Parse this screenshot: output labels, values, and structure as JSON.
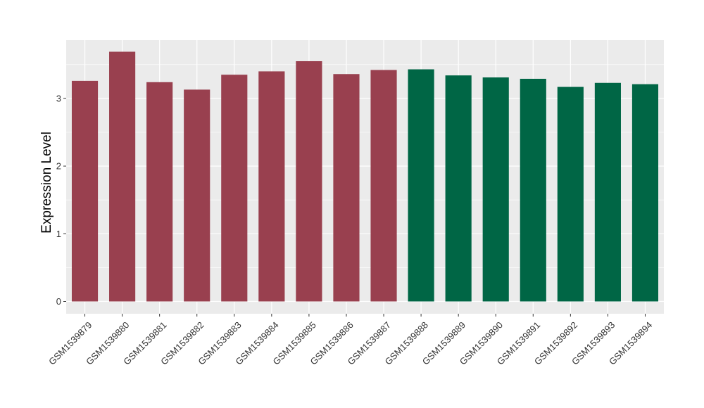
{
  "chart_data": {
    "type": "bar",
    "title": "",
    "xlabel": "",
    "ylabel": "Expression Level",
    "ylim": [
      0,
      3.87
    ],
    "yticks": [
      0,
      1,
      2,
      3
    ],
    "grid": true,
    "legend": "none",
    "categories": [
      "GSM1539879",
      "GSM1539880",
      "GSM1539881",
      "GSM1539882",
      "GSM1539883",
      "GSM1539884",
      "GSM1539885",
      "GSM1539886",
      "GSM1539887",
      "GSM1539888",
      "GSM1539889",
      "GSM1539890",
      "GSM1539891",
      "GSM1539892",
      "GSM1539893",
      "GSM1539894"
    ],
    "values": [
      3.26,
      3.69,
      3.24,
      3.13,
      3.35,
      3.4,
      3.55,
      3.36,
      3.42,
      3.43,
      3.34,
      3.31,
      3.29,
      3.17,
      3.23,
      3.21
    ],
    "groups": [
      0,
      0,
      0,
      0,
      0,
      0,
      0,
      0,
      0,
      1,
      1,
      1,
      1,
      1,
      1,
      1
    ],
    "group_colors": [
      "#99404F",
      "#006645"
    ],
    "panel_background": "#EBEBEB",
    "grid_color": "#FFFFFF"
  }
}
